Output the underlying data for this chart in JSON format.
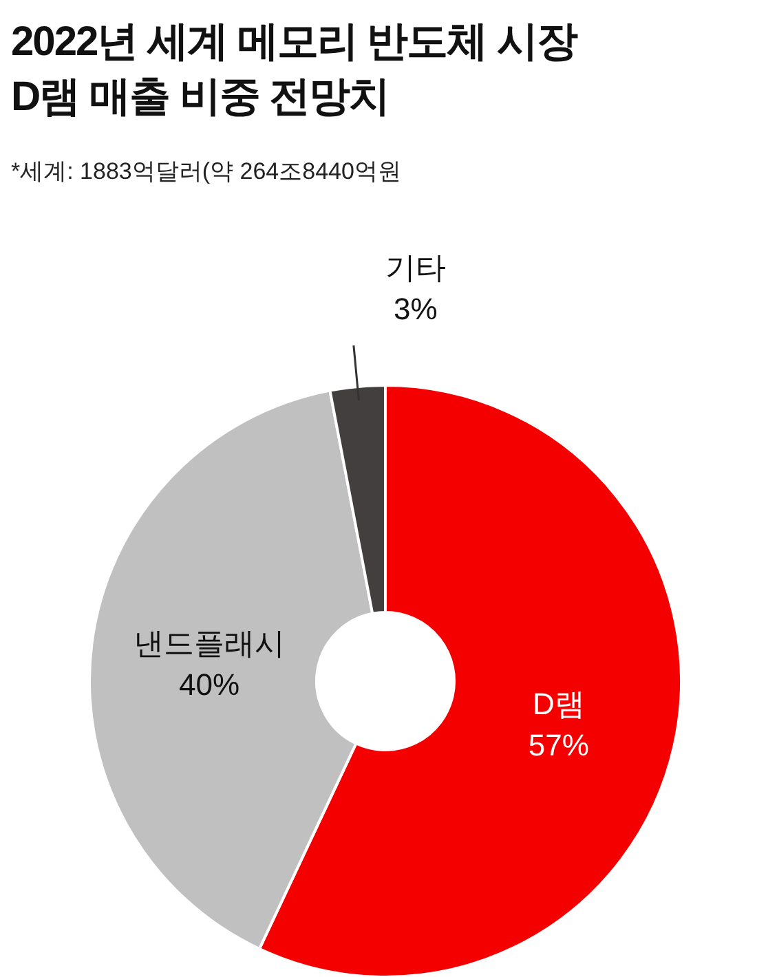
{
  "chart_data": {
    "type": "donut",
    "title": "2022년 세계 메모리 반도체 시장\nD램 매출 비중 전망치",
    "annotations": [
      "*세계: 1883억달러(약 264조8440억원"
    ],
    "categories": [
      "D램",
      "낸드플래시",
      "기타"
    ],
    "values": [
      57,
      40,
      3
    ],
    "value_labels": [
      "57%",
      "40%",
      "3%"
    ],
    "colors": [
      "#f40000",
      "#c0c0c0",
      "#443f3f"
    ]
  }
}
